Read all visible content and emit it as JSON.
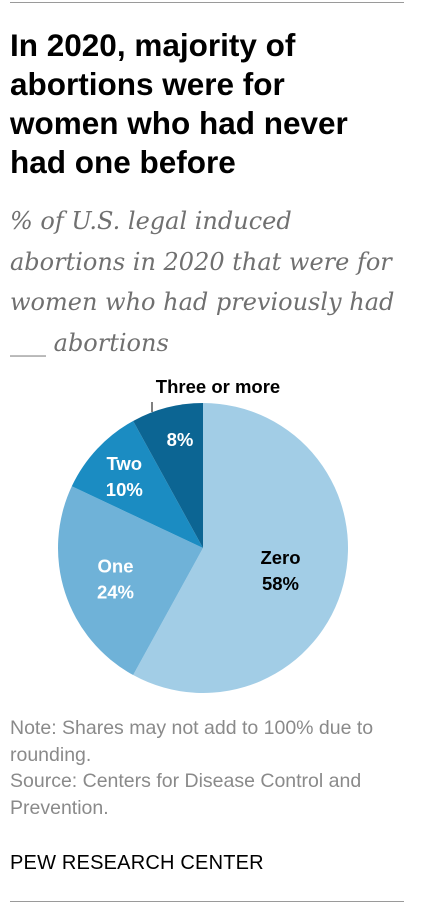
{
  "title": "In 2020, majority of abortions were for women who had never had one before",
  "subtitle": "% of U.S. legal induced abortions in 2020 that were for women who had previously had ___ abortions",
  "note": "Note: Shares may not add to 100% due to rounding.",
  "source": "Source: Centers for Disease Control and Prevention.",
  "brand": "PEW RESEARCH CENTER",
  "chart_data": {
    "type": "pie",
    "categories": [
      "Zero",
      "One",
      "Two",
      "Three or more"
    ],
    "values": [
      58,
      24,
      10,
      8
    ],
    "value_labels": [
      "58%",
      "24%",
      "10%",
      "8%"
    ],
    "colors": [
      "#a2cde6",
      "#6fb2d8",
      "#1b8cc2",
      "#0c6593"
    ],
    "label_colors": [
      "#000000",
      "#ffffff",
      "#ffffff",
      "#ffffff"
    ],
    "title": "In 2020, majority of abortions were for women who had never had one before",
    "legend": "none"
  }
}
